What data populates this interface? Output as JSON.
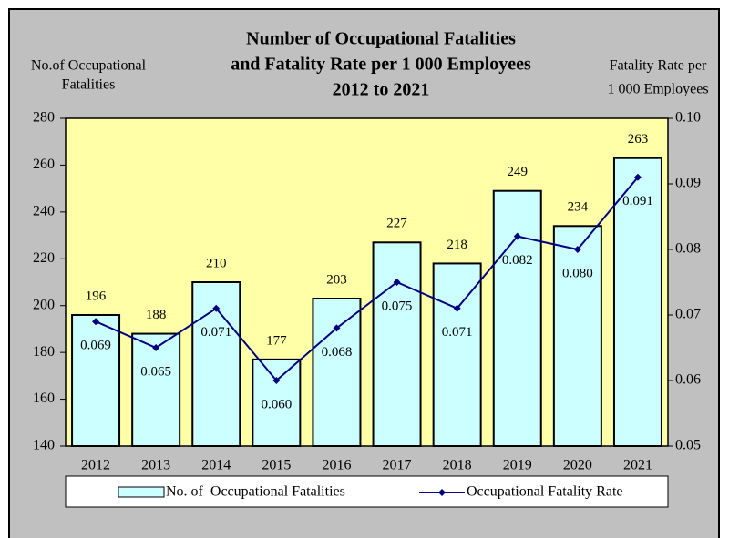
{
  "chart_data": {
    "type": "bar_line",
    "title": [
      "Number of Occupational Fatalities",
      "and Fatality Rate per 1 000 Employees",
      "2012 to 2021"
    ],
    "ylabel": [
      "No.of Occupational",
      "Fatalities"
    ],
    "y2label": [
      "Fatality Rate per",
      "1 000 Employees"
    ],
    "categories": [
      "2012",
      "2013",
      "2014",
      "2015",
      "2016",
      "2017",
      "2018",
      "2019",
      "2020",
      "2021"
    ],
    "series": [
      {
        "name": "No. of  Occupational Fatalities",
        "color": "#ccffff",
        "values": [
          196,
          188,
          210,
          177,
          203,
          227,
          218,
          249,
          234,
          263
        ]
      },
      {
        "name": "Occupational Fatality Rate",
        "color": "#000080",
        "axis": "y2",
        "values": [
          0.069,
          0.065,
          0.071,
          0.06,
          0.068,
          0.075,
          0.071,
          0.082,
          0.08,
          0.091
        ],
        "value_labels": [
          "0.069",
          "0.065",
          "0.071",
          "0.060",
          "0.068",
          "0.075",
          "0.071",
          "0.082",
          "0.080",
          "0.091"
        ]
      }
    ],
    "ylim": [
      140,
      280
    ],
    "yticks": [
      140,
      160,
      180,
      200,
      220,
      240,
      260,
      280
    ],
    "y2lim": [
      0.05,
      0.1
    ],
    "y2ticks": [
      0.05,
      0.06,
      0.07,
      0.08,
      0.09,
      {
        "value": 0.1,
        "label": "0.10"
      }
    ],
    "plot_color": "#ffffa8",
    "background": "#c0c0c0",
    "legend": "bottom"
  }
}
